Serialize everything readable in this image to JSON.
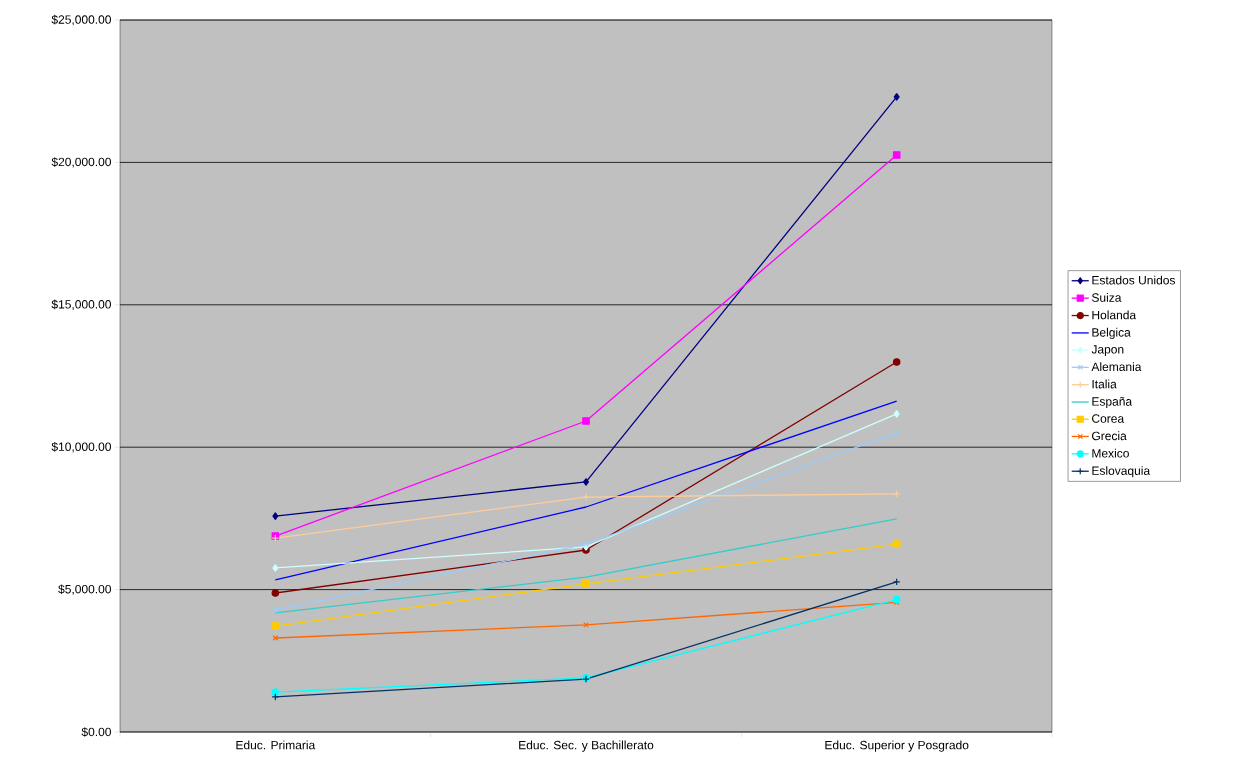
{
  "chart_data": {
    "type": "line",
    "categories": [
      "Educ. Primaria",
      "Educ. Sec. y Bachillerato",
      "Educ. Superior y Posgrado"
    ],
    "series": [
      {
        "name": "Estados Unidos",
        "color": "#000080",
        "marker": "diamond",
        "values": [
          7580,
          8780,
          22300
        ]
      },
      {
        "name": "Suiza",
        "color": "#ff00ff",
        "marker": "square",
        "values": [
          6880,
          10920,
          20260
        ]
      },
      {
        "name": "Holanda",
        "color": "#800000",
        "marker": "circle",
        "values": [
          4880,
          6390,
          12990
        ]
      },
      {
        "name": "Belgica",
        "color": "#0000ff",
        "marker": "none",
        "values": [
          5340,
          7900,
          11620
        ]
      },
      {
        "name": "Japon",
        "color": "#ccffff",
        "marker": "diamond",
        "values": [
          5760,
          6500,
          11170
        ]
      },
      {
        "name": "Alemania",
        "color": "#99ccff",
        "marker": "x",
        "values": [
          4280,
          6600,
          10500
        ]
      },
      {
        "name": "Italia",
        "color": "#ffcc99",
        "marker": "plus",
        "values": [
          6810,
          8250,
          8360
        ]
      },
      {
        "name": "España",
        "color": "#33cccc",
        "marker": "none",
        "values": [
          4180,
          5440,
          7480
        ]
      },
      {
        "name": "Corea",
        "color": "#ffcc00",
        "marker": "square",
        "values": [
          3720,
          5200,
          6600
        ]
      },
      {
        "name": "Grecia",
        "color": "#ff6600",
        "marker": "x",
        "values": [
          3300,
          3760,
          4550
        ]
      },
      {
        "name": "Mexico",
        "color": "#00ffff",
        "marker": "circle",
        "values": [
          1400,
          1900,
          4650
        ]
      },
      {
        "name": "Eslovaquia",
        "color": "#003366",
        "marker": "plus",
        "values": [
          1230,
          1860,
          5270
        ]
      }
    ],
    "ylim": [
      0,
      25000
    ],
    "yticks": [
      {
        "value": 0,
        "label": "$0.00"
      },
      {
        "value": 5000,
        "label": "$5,000.00"
      },
      {
        "value": 10000,
        "label": "$10,000.00"
      },
      {
        "value": 15000,
        "label": "$15,000.00"
      },
      {
        "value": 20000,
        "label": "$20,000.00"
      },
      {
        "value": 25000,
        "label": "$25,000.00"
      }
    ],
    "grid": "y",
    "legend": "right",
    "line_style": "solid"
  }
}
